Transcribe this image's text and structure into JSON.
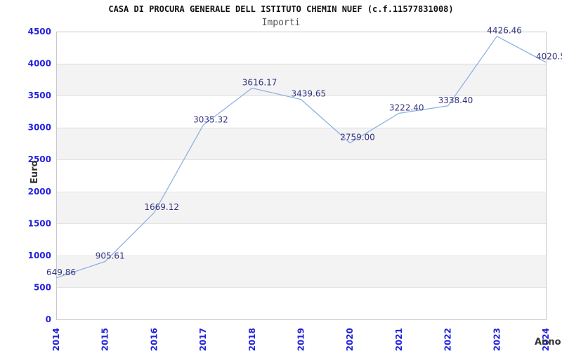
{
  "chart_data": {
    "type": "line",
    "title": "CASA DI PROCURA GENERALE DELL ISTITUTO CHEMIN NUEF (c.f.11577831008)",
    "subtitle": "Importi",
    "xlabel": "Anno",
    "ylabel": "Euro",
    "x": [
      "2014",
      "2015",
      "2016",
      "2017",
      "2018",
      "2019",
      "2020",
      "2021",
      "2022",
      "2023",
      "2024"
    ],
    "values": [
      649.86,
      905.61,
      1669.12,
      3035.32,
      3616.17,
      3439.65,
      2759.0,
      3222.4,
      3338.4,
      4426.46,
      4020.5
    ],
    "point_labels": [
      "649.86",
      "905.61",
      "1669.12",
      "3035.32",
      "3616.17",
      "3439.65",
      "2759.00",
      "3222.40",
      "3338.40",
      "4426.46",
      "4020.5"
    ],
    "ylim": [
      0,
      4500
    ],
    "ytick_step": 500,
    "grid": "alternating-horizontal-bands",
    "legend": "none",
    "colors": {
      "line": "#8cafe4",
      "tick_label": "#2222dd",
      "point_label": "#333380",
      "band": "#f3f3f3",
      "gridline": "#e3e3e3",
      "plot_border": "#c8c8c8",
      "title": "#111111",
      "subtitle": "#555555",
      "axis_title": "#333333"
    }
  }
}
